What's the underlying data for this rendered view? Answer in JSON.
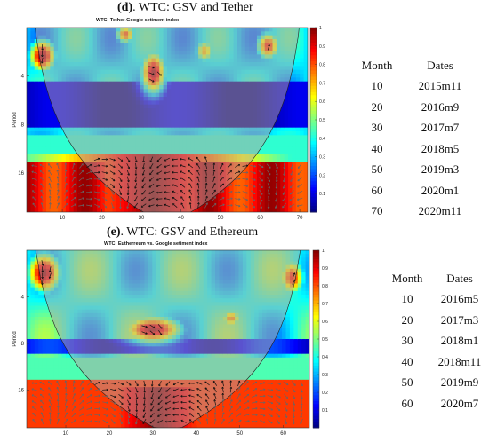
{
  "panel_d": {
    "caption_letter": "(d)",
    "caption_rest": ". WTC: GSV and Tether",
    "plot_title": "WTC: Tether-Google setiment index",
    "ylabel": "Period",
    "table_headers": [
      "Month",
      "Dates"
    ],
    "table_rows": [
      [
        "10",
        "2015m11"
      ],
      [
        "20",
        "2016m9"
      ],
      [
        "30",
        "2017m7"
      ],
      [
        "40",
        "2018m5"
      ],
      [
        "50",
        "2019m3"
      ],
      [
        "60",
        "2020m1"
      ],
      [
        "70",
        "2020m11"
      ]
    ]
  },
  "panel_e": {
    "caption_letter": "(e)",
    "caption_rest": ". WTC: GSV and Ethereum",
    "plot_title": "WTC: Eutherreum vs. Google setiment index",
    "ylabel": "Period",
    "table_headers": [
      "Month",
      "Dates"
    ],
    "table_rows": [
      [
        "10",
        "2016m5"
      ],
      [
        "20",
        "2017m3"
      ],
      [
        "30",
        "2018m1"
      ],
      [
        "40",
        "2018m11"
      ],
      [
        "50",
        "2019m9"
      ],
      [
        "60",
        "2020m7"
      ]
    ]
  },
  "colors": {
    "cone_shade": "#b4a4a4",
    "low": "#0000a0",
    "high": "#a00000"
  },
  "chart_data": [
    {
      "type": "heatmap",
      "title": "WTC: Tether-Google setiment index",
      "xlabel": "",
      "ylabel": "Period",
      "xlim": [
        1,
        72
      ],
      "x_ticks": [
        10,
        20,
        30,
        40,
        50,
        60,
        70
      ],
      "y_ticks": [
        4,
        8,
        16
      ],
      "colorbar_ticks": [
        0.1,
        0.2,
        0.3,
        0.4,
        0.5,
        0.6,
        0.7,
        0.8,
        0.9,
        1
      ],
      "colorbar_range": [
        0,
        1
      ],
      "high_coherence_regions": [
        {
          "x_center": 5,
          "period_center": 3,
          "value": 0.9
        },
        {
          "x_center": 33,
          "period_center": 3.8,
          "value": 0.95
        },
        {
          "x_center": 33,
          "period_center": 19,
          "value": 1.0
        },
        {
          "x_center": 62,
          "period_center": 2.6,
          "value": 0.8
        }
      ]
    },
    {
      "type": "heatmap",
      "title": "WTC: Eutherreum vs. Google setiment index",
      "xlabel": "",
      "ylabel": "Period",
      "xlim": [
        1,
        66
      ],
      "x_ticks": [
        10,
        20,
        30,
        40,
        50,
        60
      ],
      "y_ticks": [
        4,
        8,
        16
      ],
      "colorbar_ticks": [
        0.1,
        0.2,
        0.3,
        0.4,
        0.5,
        0.6,
        0.7,
        0.8,
        0.9,
        1
      ],
      "colorbar_range": [
        0,
        1
      ],
      "high_coherence_regions": [
        {
          "x_center": 5,
          "period_center": 3,
          "value": 0.95
        },
        {
          "x_center": 30,
          "period_center": 6.5,
          "value": 0.95
        },
        {
          "x_center": 31,
          "period_center": 21,
          "value": 1.0
        },
        {
          "x_center": 62,
          "period_center": 3,
          "value": 0.8
        }
      ]
    }
  ]
}
